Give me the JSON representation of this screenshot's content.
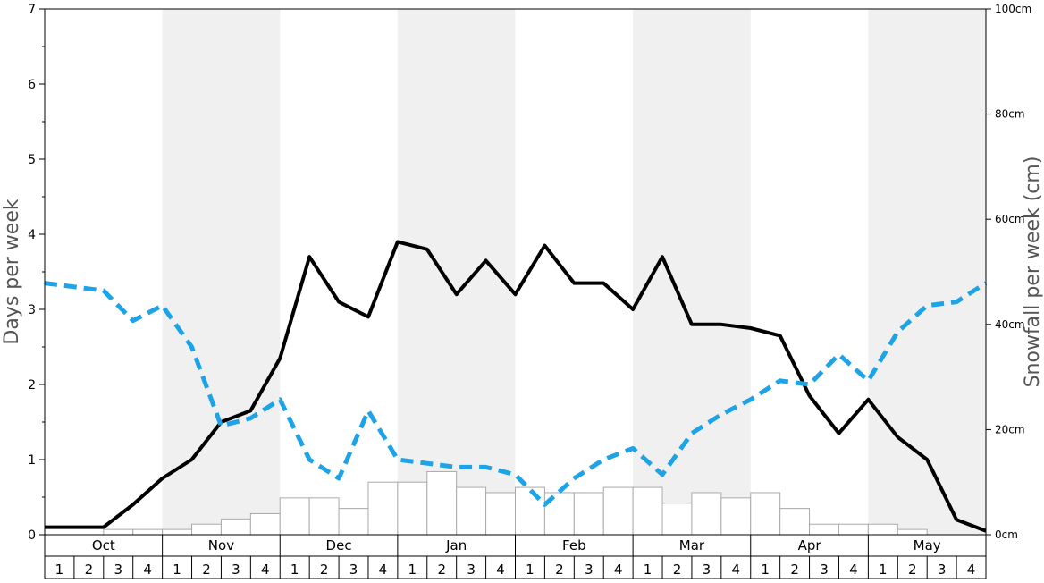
{
  "chart_data": {
    "type": "bar",
    "title": "",
    "ylabel_left": "Days per week",
    "ylabel_right": "Snowfall per week (cm)",
    "ylim_left": [
      0,
      7
    ],
    "ylim_right_cm": [
      0,
      100
    ],
    "left_ticks": [
      "0",
      "1",
      "2",
      "3",
      "4",
      "5",
      "6",
      "7"
    ],
    "right_ticks": [
      "0cm",
      "20cm",
      "40cm",
      "60cm",
      "80cm",
      "100cm"
    ],
    "months": [
      "Oct",
      "Nov",
      "Dec",
      "Jan",
      "Feb",
      "Mar",
      "Apr",
      "May"
    ],
    "week_labels": [
      "1",
      "2",
      "3",
      "4"
    ],
    "grid": false,
    "alternating_month_shading": true,
    "series": [
      {
        "kind": "bar",
        "axis": "right",
        "values": [
          0,
          0,
          1,
          1,
          1,
          2,
          3,
          4,
          7,
          7,
          5,
          10,
          10,
          12,
          9,
          8,
          9,
          8,
          8,
          9,
          9,
          6,
          8,
          7,
          8,
          5,
          2,
          2,
          2,
          1,
          0,
          0
        ]
      },
      {
        "kind": "line",
        "axis": "left",
        "style": "solid",
        "color": "#000000",
        "values": [
          0.1,
          0.1,
          0.1,
          0.4,
          0.75,
          1.0,
          1.5,
          1.65,
          2.35,
          3.7,
          3.1,
          2.9,
          3.9,
          3.8,
          3.2,
          3.65,
          3.2,
          3.85,
          3.35,
          3.35,
          3.0,
          3.7,
          2.8,
          2.8,
          2.75,
          2.65,
          1.85,
          1.35,
          1.8,
          1.3,
          1.0,
          0.2,
          0.05
        ]
      },
      {
        "kind": "line",
        "axis": "left",
        "style": "dashed",
        "color": "#1ea3e6",
        "values": [
          3.35,
          3.3,
          3.25,
          2.85,
          3.05,
          2.5,
          1.45,
          1.55,
          1.8,
          1.0,
          0.75,
          1.65,
          1.0,
          0.95,
          0.9,
          0.9,
          0.8,
          0.4,
          0.75,
          1.0,
          1.15,
          0.8,
          1.35,
          1.6,
          1.8,
          2.05,
          2.0,
          2.4,
          2.05,
          2.7,
          3.05,
          3.1,
          3.35
        ]
      }
    ]
  }
}
